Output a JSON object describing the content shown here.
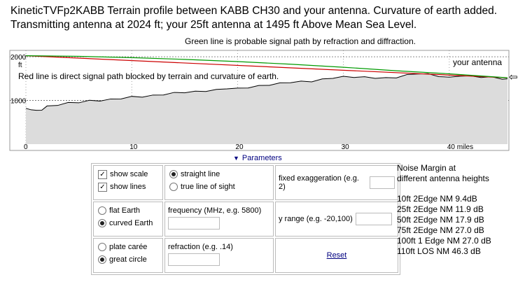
{
  "header": {
    "title": "KineticTVFp2KABB  Terrain profile between KABB CH30 and your antenna. Curvature of earth added. Transmitting antenna at 2024 ft; your 25ft antenna at 1495 ft Above Mean Sea Level.",
    "subtitle": "Green line is probable signal path by refraction and diffraction."
  },
  "chart_data": {
    "type": "area",
    "annotations": {
      "unit_label": "ft",
      "red_line_note": "Red line is direct signal path blocked by terrain and curvature of earth.",
      "antenna_label": "your antenna",
      "antenna_arrow": "⇦"
    },
    "x_tick_labels": [
      "0",
      "10",
      "20",
      "30",
      "40 miles"
    ],
    "x_ticks": [
      0,
      10,
      20,
      30,
      40
    ],
    "y_tick_labels": [
      "2000",
      "1000"
    ],
    "y_ticks": [
      2000,
      1000
    ],
    "xlim": [
      0,
      45.5
    ],
    "ylim": [
      0,
      2050
    ],
    "grid": true,
    "series": [
      {
        "role": "terrain",
        "x": [
          0,
          0.5,
          1,
          1.5,
          2,
          3,
          4,
          5,
          6,
          7,
          8,
          9,
          10,
          11,
          12,
          13,
          14,
          15,
          16,
          17,
          18,
          19,
          20,
          21,
          22,
          23,
          24,
          25,
          26,
          27,
          28,
          29,
          30,
          31,
          32,
          33,
          34,
          35,
          36,
          37,
          38,
          39,
          40,
          41,
          42,
          43,
          44,
          45,
          45.5
        ],
        "y": [
          820,
          800,
          760,
          790,
          860,
          900,
          940,
          960,
          990,
          1000,
          1020,
          1050,
          1080,
          1090,
          1110,
          1140,
          1170,
          1190,
          1200,
          1220,
          1240,
          1280,
          1270,
          1300,
          1330,
          1360,
          1390,
          1420,
          1430,
          1440,
          1480,
          1520,
          1540,
          1540,
          1530,
          1520,
          1510,
          1530,
          1580,
          1620,
          1600,
          1560,
          1520,
          1570,
          1550,
          1540,
          1530,
          1500,
          1495
        ]
      },
      {
        "role": "direct-path",
        "color": "#cc0000",
        "x": [
          0,
          45.5
        ],
        "y": [
          2024,
          1520
        ]
      },
      {
        "role": "refracted-path",
        "color": "#009900",
        "x": [
          0,
          5,
          10,
          15,
          20,
          25,
          30,
          35,
          40,
          45.5
        ],
        "y": [
          2024,
          2010,
          1980,
          1940,
          1890,
          1830,
          1760,
          1680,
          1610,
          1520
        ]
      }
    ]
  },
  "params": {
    "toggle_label": "Parameters",
    "show_scale": "show scale",
    "show_lines": "show lines",
    "straight_line": "straight line",
    "true_line_of_sight": "true line of sight",
    "fixed_exaggeration": "fixed exaggeration (e.g. 2)",
    "flat_earth": "flat Earth",
    "curved_earth": "curved Earth",
    "frequency": "frequency (MHz, e.g. 5800)",
    "y_range": "y range (e.g. -20,100)",
    "plate_caree": "plate carée",
    "great_circle": "great circle",
    "refraction": "refraction (e.g. .14)",
    "reset": "Reset"
  },
  "noise": {
    "heading1": "Noise Margin at",
    "heading2": "different antenna heights",
    "rows": [
      "10ft 2Edge NM 9.4dB",
      "25ft 2Edge NM 11.9 dB",
      "50ft 2Edge NM 17.9 dB",
      "75ft 2Edge NM 27.0 dB",
      "100ft 1 Edge NM 27.0 dB",
      "110ft LOS NM 46.3 dB"
    ]
  }
}
